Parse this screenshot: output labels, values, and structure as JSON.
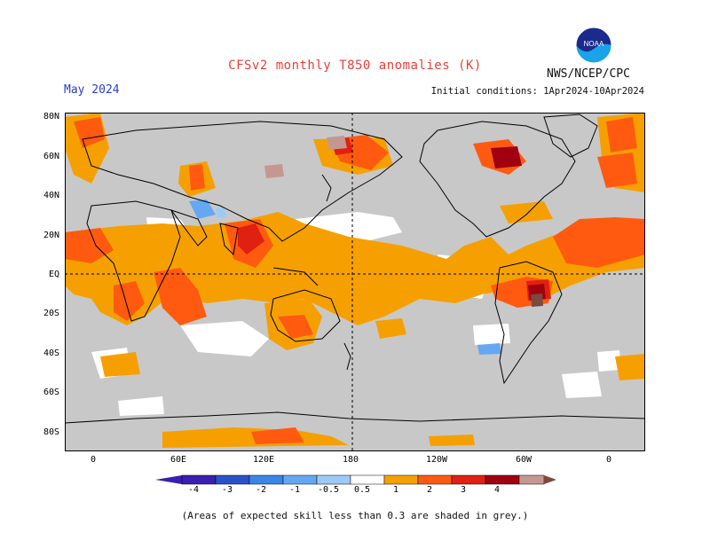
{
  "title": "CFSv2 monthly T850 anomalies (K)",
  "month": "May 2024",
  "agency": "NWS/NCEP/CPC",
  "initial_conditions": "Initial conditions: 1Apr2024-10Apr2024",
  "logo_text": "NOAA",
  "lat_ticks": [
    "80N",
    "60N",
    "40N",
    "20N",
    "EQ",
    "20S",
    "40S",
    "60S",
    "80S"
  ],
  "lon_ticks": [
    "0",
    "60E",
    "120E",
    "180",
    "120W",
    "60W",
    "0"
  ],
  "colorbar": {
    "labels": [
      "-4",
      "-3",
      "-2",
      "-1",
      "-0.5",
      "0.5",
      "1",
      "2",
      "3",
      "4"
    ],
    "colors": [
      "#3a1fb0",
      "#2a52c8",
      "#3a86e8",
      "#64a8f2",
      "#9ccaf8",
      "#ffffff",
      "#f5a000",
      "#ff5a10",
      "#e02010",
      "#a00010",
      "#c49890",
      "#7a4a3c"
    ]
  },
  "note": "(Areas of expected skill less than 0.3 are shaded in grey.)",
  "colors": {
    "skill_grey": "#c8c8c8",
    "anom_0_5_1": "#f5a000",
    "anom_1_2": "#ff5a10",
    "anom_2_3": "#e02010",
    "anom_3_4": "#a00010",
    "anom_4": "#c49890",
    "anom_gt4": "#7a4a3c",
    "anom_neg_0_5_1": "#9ccaf8",
    "anom_neg_1_2": "#64a8f2"
  }
}
